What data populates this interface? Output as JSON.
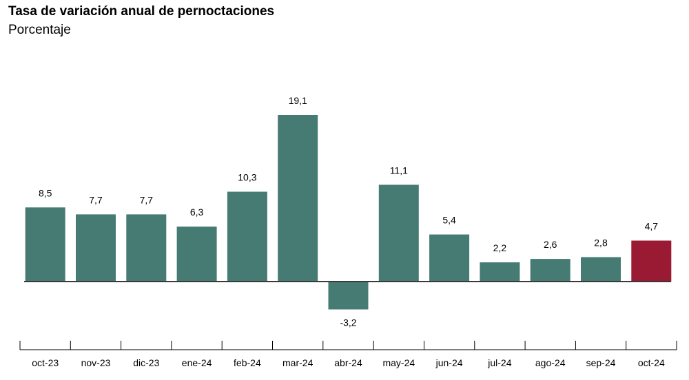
{
  "header": {
    "title": "Tasa de variación anual de pernoctaciones",
    "subtitle": "Porcentaje"
  },
  "colors": {
    "bar": "#467b74",
    "highlight": "#9b1a33",
    "zero_line": "#3a3a3a",
    "axis": "#000000"
  },
  "chart_data": {
    "type": "bar",
    "title": "Tasa de variación anual de pernoctaciones",
    "subtitle": "Porcentaje",
    "xlabel": "",
    "ylabel": "",
    "categories": [
      "oct-23",
      "nov-23",
      "dic-23",
      "ene-24",
      "feb-24",
      "mar-24",
      "abr-24",
      "may-24",
      "jun-24",
      "jul-24",
      "ago-24",
      "sep-24",
      "oct-24"
    ],
    "values": [
      8.5,
      7.7,
      7.7,
      6.3,
      10.3,
      19.1,
      -3.2,
      11.1,
      5.4,
      2.2,
      2.6,
      2.8,
      4.7
    ],
    "data_labels": [
      "8,5",
      "7,7",
      "7,7",
      "6,3",
      "10,3",
      "19,1",
      "-3,2",
      "11,1",
      "5,4",
      "2,2",
      "2,6",
      "2,8",
      "4,7"
    ],
    "highlight_index": 12,
    "ylim": [
      -3.2,
      19.1
    ],
    "grid": false,
    "legend": "none"
  }
}
